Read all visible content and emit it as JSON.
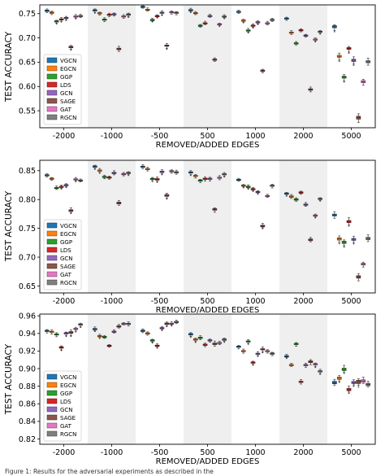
{
  "colors": {
    "VGCN": "#1f77b4",
    "EGCN": "#ff7f0e",
    "GGP": "#2ca02c",
    "LDS": "#d62728",
    "GCN": "#9467bd",
    "SAGE": "#8c564b",
    "GAT": "#e377c2",
    "RGCN": "#7f7f7f",
    "band": "#efefef"
  },
  "caption": "Figure 1: Results for the adversarial experiments as described in the",
  "chart_data": [
    {
      "type": "box",
      "xlabel": "REMOVED/ADDED EDGES",
      "ylabel": "TEST ACCURACY",
      "categories": [
        "-2000",
        "-1000",
        "-500",
        "500",
        "1000",
        "2000",
        "5000"
      ],
      "legend_position": "left",
      "grid": false,
      "ylim": [
        0.515,
        0.768
      ],
      "yticks": [
        0.55,
        0.6,
        0.65,
        0.7,
        0.75
      ],
      "yticklabels": [
        "0.55",
        "0.60",
        "0.65",
        "0.70",
        "0.75"
      ],
      "series": [
        {
          "name": "VGCN",
          "medians": [
            0.756,
            0.757,
            0.764,
            0.757,
            0.754,
            0.74,
            0.723
          ]
        },
        {
          "name": "EGCN",
          "medians": [
            0.752,
            0.751,
            0.758,
            0.751,
            0.736,
            0.711,
            0.662
          ]
        },
        {
          "name": "GGP",
          "medians": [
            0.734,
            0.738,
            0.737,
            0.725,
            0.715,
            0.689,
            0.619
          ]
        },
        {
          "name": "LDS",
          "medians": [
            0.738,
            0.748,
            0.745,
            0.73,
            0.725,
            0.716,
            0.678
          ]
        },
        {
          "name": "GCN",
          "medians": [
            0.741,
            0.749,
            0.752,
            0.745,
            0.732,
            0.705,
            0.654
          ]
        },
        {
          "name": "SAGE",
          "medians": [
            0.681,
            0.677,
            0.684,
            0.655,
            0.632,
            0.594,
            0.536
          ]
        },
        {
          "name": "GAT",
          "medians": [
            0.744,
            0.744,
            0.753,
            0.728,
            0.73,
            0.697,
            0.61
          ]
        },
        {
          "name": "RGCN",
          "medians": [
            0.745,
            0.748,
            0.752,
            0.744,
            0.737,
            0.713,
            0.651
          ]
        }
      ]
    },
    {
      "type": "box",
      "xlabel": "REMOVED/ADDED EDGES",
      "ylabel": "TEST ACCURACY",
      "categories": [
        "-2000",
        "-1000",
        "-500",
        "500",
        "1000",
        "2000",
        "5000"
      ],
      "legend_position": "left",
      "grid": false,
      "ylim": [
        0.638,
        0.868
      ],
      "yticks": [
        0.65,
        0.7,
        0.75,
        0.8,
        0.85
      ],
      "yticklabels": [
        "0.65",
        "0.70",
        "0.75",
        "0.80",
        "0.85"
      ],
      "series": [
        {
          "name": "VGCN",
          "medians": [
            0.842,
            0.857,
            0.857,
            0.847,
            0.834,
            0.81,
            0.773
          ]
        },
        {
          "name": "EGCN",
          "medians": [
            0.836,
            0.85,
            0.853,
            0.841,
            0.824,
            0.805,
            0.732
          ]
        },
        {
          "name": "GGP",
          "medians": [
            0.82,
            0.839,
            0.836,
            0.833,
            0.822,
            0.8,
            0.726
          ]
        },
        {
          "name": "LDS",
          "medians": [
            0.822,
            0.838,
            0.835,
            0.836,
            0.818,
            0.812,
            0.762
          ]
        },
        {
          "name": "GCN",
          "medians": [
            0.825,
            0.846,
            0.848,
            0.836,
            0.813,
            0.791,
            0.731
          ]
        },
        {
          "name": "SAGE",
          "medians": [
            0.781,
            0.794,
            0.807,
            0.783,
            0.754,
            0.73,
            0.666
          ]
        },
        {
          "name": "GAT",
          "medians": [
            0.835,
            0.844,
            0.849,
            0.838,
            0.806,
            0.772,
            0.688
          ]
        },
        {
          "name": "RGCN",
          "medians": [
            0.833,
            0.846,
            0.847,
            0.844,
            0.824,
            0.801,
            0.732
          ]
        }
      ]
    },
    {
      "type": "box",
      "xlabel": "REMOVED/ADDED EDGES",
      "ylabel": "TEST ACCURACY",
      "categories": [
        "-2000",
        "-1000",
        "-500",
        "500",
        "1000",
        "2000",
        "5000"
      ],
      "legend_position": "left",
      "grid": false,
      "ylim": [
        0.814,
        0.962
      ],
      "yticks": [
        0.82,
        0.84,
        0.86,
        0.88,
        0.9,
        0.92,
        0.94,
        0.96
      ],
      "yticklabels": [
        "0.82",
        "0.84",
        "0.86",
        "0.88",
        "0.90",
        "0.92",
        "0.94",
        "0.96"
      ],
      "series": [
        {
          "name": "VGCN",
          "medians": [
            0.943,
            0.945,
            0.943,
            0.939,
            0.925,
            0.914,
            0.884
          ]
        },
        {
          "name": "EGCN",
          "medians": [
            0.942,
            0.937,
            0.94,
            0.933,
            0.92,
            0.904,
            0.889
          ]
        },
        {
          "name": "GGP",
          "medians": [
            0.939,
            0.936,
            0.932,
            0.935,
            0.931,
            0.928,
            0.899
          ]
        },
        {
          "name": "LDS",
          "medians": [
            0.924,
            0.926,
            0.926,
            0.927,
            0.907,
            0.885,
            0.876
          ]
        },
        {
          "name": "GCN",
          "medians": [
            0.94,
            0.942,
            0.946,
            0.932,
            0.917,
            0.904,
            0.884
          ]
        },
        {
          "name": "SAGE",
          "medians": [
            0.941,
            0.948,
            0.951,
            0.928,
            0.922,
            0.908,
            0.885
          ]
        },
        {
          "name": "GAT",
          "medians": [
            0.945,
            0.951,
            0.951,
            0.929,
            0.92,
            0.905,
            0.886
          ]
        },
        {
          "name": "RGCN",
          "medians": [
            0.95,
            0.951,
            0.953,
            0.933,
            0.917,
            0.897,
            0.882
          ]
        }
      ]
    }
  ]
}
